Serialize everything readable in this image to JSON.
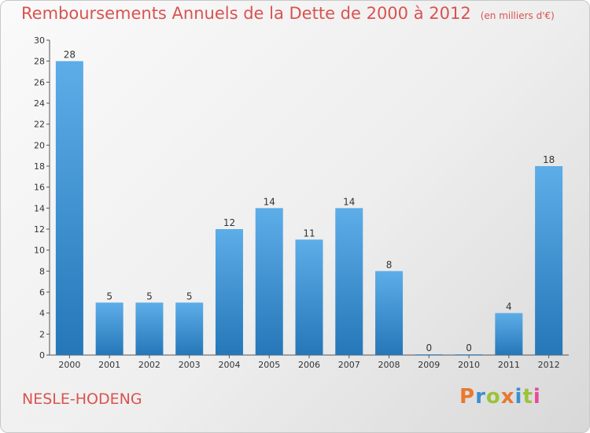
{
  "title": "Remboursements Annuels de la Dette de 2000 à 2012",
  "unit_note": "(en milliers d'€)",
  "place_name": "NESLE-HODENG",
  "logo_text": "Proxiti",
  "colors": {
    "bar_light": "#5dade8",
    "bar_dark": "#2577b8",
    "title": "#d9534f",
    "logo_letters": [
      "#e8792f",
      "#3a8fd0",
      "#9bc33a",
      "#e8792f",
      "#3a8fd0",
      "#9bc33a",
      "#e84a9a"
    ]
  },
  "chart_data": {
    "type": "bar",
    "categories": [
      "2000",
      "2001",
      "2002",
      "2003",
      "2004",
      "2005",
      "2006",
      "2007",
      "2008",
      "2009",
      "2010",
      "2011",
      "2012"
    ],
    "values": [
      28,
      5,
      5,
      5,
      12,
      14,
      11,
      14,
      8,
      0,
      0,
      4,
      18
    ],
    "ylim": [
      0,
      30
    ],
    "yticks": [
      0,
      2,
      4,
      6,
      8,
      10,
      12,
      14,
      16,
      18,
      20,
      22,
      24,
      26,
      28,
      30
    ],
    "grid": false
  }
}
